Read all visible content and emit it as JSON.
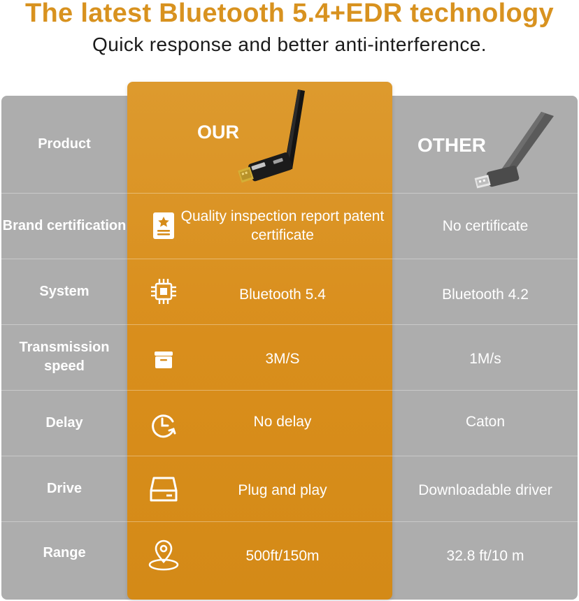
{
  "header": {
    "title": "The latest Bluetooth 5.4+EDR technology",
    "subtitle": "Quick response and better anti-interference."
  },
  "colors": {
    "accent": "#d68c1a",
    "title": "#d8921f",
    "panel_gray": "#adadad",
    "text_light": "#ffffff"
  },
  "columns": {
    "our": "OUR",
    "other": "OTHER"
  },
  "rows": [
    {
      "label": "Product"
    },
    {
      "label": "Brand certification",
      "our": "Quality inspection report patent certificate",
      "other": "No certificate",
      "icon": "certificate-icon"
    },
    {
      "label": "System",
      "our": "Bluetooth 5.4",
      "other": "Bluetooth 4.2",
      "icon": "chip-icon"
    },
    {
      "label": "Transmission speed",
      "our": "3M/S",
      "other": "1M/s",
      "icon": "box-icon"
    },
    {
      "label": "Delay",
      "our": "No delay",
      "other": "Caton",
      "icon": "clock-refresh-icon"
    },
    {
      "label": "Drive",
      "our": "Plug and play",
      "other": "Downloadable driver",
      "icon": "drive-icon"
    },
    {
      "label": "Range",
      "our": "500ft/150m",
      "other": "32.8 ft/10 m",
      "icon": "location-pin-icon"
    }
  ]
}
